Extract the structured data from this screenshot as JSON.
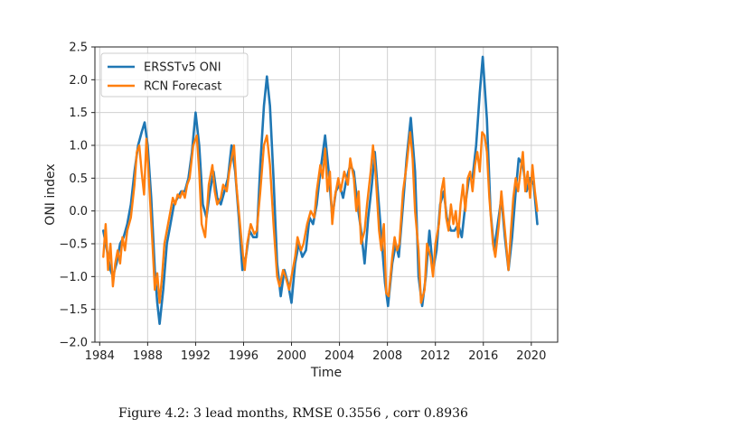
{
  "caption": "Figure 4.2: 3 lead months, RMSE 0.3556 , corr 0.8936",
  "chart_data": {
    "type": "line",
    "title": "",
    "xlabel": "Time",
    "ylabel": "ONI index",
    "xlim": [
      1983.6,
      2022.2
    ],
    "ylim": [
      -2.0,
      2.5
    ],
    "xticks": [
      1984,
      1988,
      1992,
      1996,
      2000,
      2004,
      2008,
      2012,
      2016,
      2020
    ],
    "yticks": [
      -2.0,
      -1.5,
      -1.0,
      -0.5,
      0.0,
      0.5,
      1.0,
      1.5,
      2.0,
      2.5
    ],
    "ytick_labels": [
      "−2.0",
      "−1.5",
      "−1.0",
      "−0.5",
      "0.0",
      "0.5",
      "1.0",
      "1.5",
      "2.0",
      "2.5"
    ],
    "grid": true,
    "legend_position": "top-left",
    "series": [
      {
        "name": "ERSSTv5 ONI",
        "color": "#1f77b4",
        "points": [
          [
            1984.3,
            -0.3
          ],
          [
            1984.6,
            -0.6
          ],
          [
            1984.9,
            -0.9
          ],
          [
            1985.1,
            -1.0
          ],
          [
            1985.4,
            -0.8
          ],
          [
            1985.7,
            -0.5
          ],
          [
            1986.0,
            -0.4
          ],
          [
            1986.3,
            -0.2
          ],
          [
            1986.6,
            0.1
          ],
          [
            1986.9,
            0.6
          ],
          [
            1987.2,
            1.0
          ],
          [
            1987.5,
            1.2
          ],
          [
            1987.75,
            1.35
          ],
          [
            1988.0,
            1.0
          ],
          [
            1988.3,
            0.2
          ],
          [
            1988.6,
            -0.9
          ],
          [
            1988.8,
            -1.4
          ],
          [
            1989.0,
            -1.72
          ],
          [
            1989.3,
            -1.2
          ],
          [
            1989.6,
            -0.5
          ],
          [
            1989.9,
            -0.2
          ],
          [
            1990.2,
            0.1
          ],
          [
            1990.5,
            0.2
          ],
          [
            1990.8,
            0.3
          ],
          [
            1991.1,
            0.3
          ],
          [
            1991.4,
            0.5
          ],
          [
            1991.7,
            0.9
          ],
          [
            1992.0,
            1.5
          ],
          [
            1992.3,
            1.0
          ],
          [
            1992.6,
            0.1
          ],
          [
            1992.9,
            -0.1
          ],
          [
            1993.2,
            0.3
          ],
          [
            1993.5,
            0.6
          ],
          [
            1993.8,
            0.2
          ],
          [
            1994.1,
            0.1
          ],
          [
            1994.4,
            0.3
          ],
          [
            1994.7,
            0.5
          ],
          [
            1995.0,
            1.0
          ],
          [
            1995.3,
            0.6
          ],
          [
            1995.6,
            -0.1
          ],
          [
            1995.9,
            -0.9
          ],
          [
            1996.2,
            -0.7
          ],
          [
            1996.5,
            -0.3
          ],
          [
            1996.8,
            -0.4
          ],
          [
            1997.1,
            -0.4
          ],
          [
            1997.4,
            0.7
          ],
          [
            1997.7,
            1.6
          ],
          [
            1997.95,
            2.05
          ],
          [
            1998.2,
            1.6
          ],
          [
            1998.5,
            0.5
          ],
          [
            1998.8,
            -0.8
          ],
          [
            1999.1,
            -1.3
          ],
          [
            1999.4,
            -0.9
          ],
          [
            1999.7,
            -1.1
          ],
          [
            2000.0,
            -1.4
          ],
          [
            2000.3,
            -0.8
          ],
          [
            2000.6,
            -0.5
          ],
          [
            2000.9,
            -0.7
          ],
          [
            2001.2,
            -0.6
          ],
          [
            2001.5,
            -0.1
          ],
          [
            2001.8,
            -0.2
          ],
          [
            2002.1,
            0.1
          ],
          [
            2002.4,
            0.6
          ],
          [
            2002.8,
            1.15
          ],
          [
            2003.1,
            0.6
          ],
          [
            2003.4,
            -0.1
          ],
          [
            2003.7,
            0.3
          ],
          [
            2004.0,
            0.4
          ],
          [
            2004.3,
            0.2
          ],
          [
            2004.6,
            0.5
          ],
          [
            2004.9,
            0.7
          ],
          [
            2005.2,
            0.6
          ],
          [
            2005.5,
            0.1
          ],
          [
            2005.8,
            -0.3
          ],
          [
            2006.1,
            -0.8
          ],
          [
            2006.4,
            -0.1
          ],
          [
            2006.7,
            0.4
          ],
          [
            2006.95,
            0.9
          ],
          [
            2007.2,
            0.3
          ],
          [
            2007.5,
            -0.4
          ],
          [
            2007.8,
            -1.1
          ],
          [
            2008.05,
            -1.45
          ],
          [
            2008.4,
            -0.8
          ],
          [
            2008.7,
            -0.5
          ],
          [
            2008.95,
            -0.7
          ],
          [
            2009.3,
            0.1
          ],
          [
            2009.6,
            0.8
          ],
          [
            2009.95,
            1.42
          ],
          [
            2010.3,
            0.6
          ],
          [
            2010.6,
            -1.0
          ],
          [
            2010.9,
            -1.45
          ],
          [
            2011.2,
            -1.0
          ],
          [
            2011.5,
            -0.3
          ],
          [
            2011.8,
            -0.9
          ],
          [
            2012.1,
            -0.6
          ],
          [
            2012.4,
            0.1
          ],
          [
            2012.7,
            0.3
          ],
          [
            2012.95,
            -0.1
          ],
          [
            2013.3,
            -0.3
          ],
          [
            2013.6,
            -0.3
          ],
          [
            2013.9,
            -0.2
          ],
          [
            2014.2,
            -0.4
          ],
          [
            2014.5,
            0.1
          ],
          [
            2014.8,
            0.5
          ],
          [
            2015.1,
            0.5
          ],
          [
            2015.4,
            1.0
          ],
          [
            2015.7,
            1.8
          ],
          [
            2015.95,
            2.35
          ],
          [
            2016.3,
            1.4
          ],
          [
            2016.6,
            0.0
          ],
          [
            2016.9,
            -0.6
          ],
          [
            2017.2,
            -0.2
          ],
          [
            2017.5,
            0.2
          ],
          [
            2017.8,
            -0.4
          ],
          [
            2018.1,
            -0.9
          ],
          [
            2018.4,
            -0.4
          ],
          [
            2018.7,
            0.3
          ],
          [
            2018.95,
            0.8
          ],
          [
            2019.3,
            0.7
          ],
          [
            2019.6,
            0.3
          ],
          [
            2019.9,
            0.5
          ],
          [
            2020.2,
            0.4
          ],
          [
            2020.5,
            -0.2
          ]
        ]
      },
      {
        "name": "RCN Forecast",
        "color": "#ff7f0e",
        "points": [
          [
            1984.3,
            -0.7
          ],
          [
            1984.5,
            -0.2
          ],
          [
            1984.7,
            -0.9
          ],
          [
            1984.9,
            -0.5
          ],
          [
            1985.1,
            -1.15
          ],
          [
            1985.3,
            -0.8
          ],
          [
            1985.5,
            -0.6
          ],
          [
            1985.7,
            -0.8
          ],
          [
            1985.9,
            -0.4
          ],
          [
            1986.1,
            -0.6
          ],
          [
            1986.3,
            -0.3
          ],
          [
            1986.6,
            -0.1
          ],
          [
            1986.9,
            0.4
          ],
          [
            1987.1,
            0.9
          ],
          [
            1987.3,
            1.0
          ],
          [
            1987.5,
            0.6
          ],
          [
            1987.7,
            0.25
          ],
          [
            1987.9,
            1.1
          ],
          [
            1988.1,
            0.5
          ],
          [
            1988.4,
            -0.5
          ],
          [
            1988.6,
            -1.2
          ],
          [
            1988.8,
            -0.95
          ],
          [
            1989.0,
            -1.4
          ],
          [
            1989.2,
            -1.0
          ],
          [
            1989.4,
            -0.5
          ],
          [
            1989.6,
            -0.3
          ],
          [
            1989.9,
            0.0
          ],
          [
            1990.1,
            0.2
          ],
          [
            1990.3,
            0.1
          ],
          [
            1990.5,
            0.25
          ],
          [
            1990.7,
            0.2
          ],
          [
            1990.9,
            0.3
          ],
          [
            1991.1,
            0.2
          ],
          [
            1991.3,
            0.4
          ],
          [
            1991.5,
            0.5
          ],
          [
            1991.8,
            1.0
          ],
          [
            1992.1,
            1.15
          ],
          [
            1992.3,
            0.6
          ],
          [
            1992.5,
            -0.2
          ],
          [
            1992.8,
            -0.4
          ],
          [
            1993.1,
            0.4
          ],
          [
            1993.4,
            0.7
          ],
          [
            1993.6,
            0.3
          ],
          [
            1993.8,
            0.1
          ],
          [
            1994.1,
            0.2
          ],
          [
            1994.3,
            0.4
          ],
          [
            1994.6,
            0.3
          ],
          [
            1994.8,
            0.6
          ],
          [
            1995.0,
            0.8
          ],
          [
            1995.2,
            1.0
          ],
          [
            1995.4,
            0.4
          ],
          [
            1995.6,
            0.0
          ],
          [
            1995.9,
            -0.6
          ],
          [
            1996.1,
            -0.9
          ],
          [
            1996.3,
            -0.5
          ],
          [
            1996.6,
            -0.2
          ],
          [
            1996.9,
            -0.35
          ],
          [
            1997.1,
            -0.3
          ],
          [
            1997.4,
            0.3
          ],
          [
            1997.7,
            1.0
          ],
          [
            1997.95,
            1.15
          ],
          [
            1998.2,
            0.7
          ],
          [
            1998.5,
            -0.2
          ],
          [
            1998.8,
            -1.0
          ],
          [
            1999.0,
            -1.15
          ],
          [
            1999.3,
            -0.9
          ],
          [
            1999.5,
            -1.0
          ],
          [
            1999.8,
            -1.2
          ],
          [
            2000.0,
            -1.0
          ],
          [
            2000.3,
            -0.7
          ],
          [
            2000.5,
            -0.4
          ],
          [
            2000.8,
            -0.6
          ],
          [
            2001.0,
            -0.5
          ],
          [
            2001.3,
            -0.2
          ],
          [
            2001.6,
            0.0
          ],
          [
            2001.9,
            -0.1
          ],
          [
            2002.1,
            0.3
          ],
          [
            2002.4,
            0.7
          ],
          [
            2002.6,
            0.5
          ],
          [
            2002.8,
            0.95
          ],
          [
            2003.0,
            0.3
          ],
          [
            2003.2,
            0.6
          ],
          [
            2003.4,
            -0.2
          ],
          [
            2003.6,
            0.2
          ],
          [
            2003.9,
            0.5
          ],
          [
            2004.1,
            0.3
          ],
          [
            2004.4,
            0.6
          ],
          [
            2004.7,
            0.4
          ],
          [
            2004.9,
            0.8
          ],
          [
            2005.2,
            0.5
          ],
          [
            2005.4,
            0.0
          ],
          [
            2005.6,
            0.3
          ],
          [
            2005.8,
            -0.5
          ],
          [
            2006.1,
            -0.3
          ],
          [
            2006.3,
            0.1
          ],
          [
            2006.6,
            0.6
          ],
          [
            2006.8,
            1.0
          ],
          [
            2007.0,
            0.6
          ],
          [
            2007.3,
            -0.3
          ],
          [
            2007.5,
            -0.6
          ],
          [
            2007.7,
            -0.2
          ],
          [
            2007.9,
            -1.25
          ],
          [
            2008.1,
            -1.3
          ],
          [
            2008.4,
            -0.7
          ],
          [
            2008.6,
            -0.4
          ],
          [
            2008.8,
            -0.6
          ],
          [
            2009.0,
            -0.5
          ],
          [
            2009.3,
            0.3
          ],
          [
            2009.6,
            0.7
          ],
          [
            2009.9,
            1.2
          ],
          [
            2010.1,
            0.8
          ],
          [
            2010.3,
            0.0
          ],
          [
            2010.6,
            -0.6
          ],
          [
            2010.8,
            -1.4
          ],
          [
            2011.1,
            -1.2
          ],
          [
            2011.3,
            -0.5
          ],
          [
            2011.6,
            -0.7
          ],
          [
            2011.8,
            -1.0
          ],
          [
            2012.0,
            -0.5
          ],
          [
            2012.3,
            -0.2
          ],
          [
            2012.5,
            0.3
          ],
          [
            2012.7,
            0.5
          ],
          [
            2012.9,
            -0.1
          ],
          [
            2013.1,
            -0.3
          ],
          [
            2013.3,
            0.1
          ],
          [
            2013.5,
            -0.2
          ],
          [
            2013.7,
            0.0
          ],
          [
            2013.9,
            -0.4
          ],
          [
            2014.1,
            0.1
          ],
          [
            2014.3,
            0.4
          ],
          [
            2014.5,
            0.0
          ],
          [
            2014.7,
            0.5
          ],
          [
            2014.9,
            0.6
          ],
          [
            2015.1,
            0.3
          ],
          [
            2015.3,
            0.7
          ],
          [
            2015.5,
            0.9
          ],
          [
            2015.7,
            0.6
          ],
          [
            2015.9,
            1.2
          ],
          [
            2016.1,
            1.15
          ],
          [
            2016.3,
            0.9
          ],
          [
            2016.5,
            0.2
          ],
          [
            2016.8,
            -0.5
          ],
          [
            2017.0,
            -0.7
          ],
          [
            2017.3,
            -0.2
          ],
          [
            2017.5,
            0.3
          ],
          [
            2017.7,
            -0.1
          ],
          [
            2017.9,
            -0.5
          ],
          [
            2018.1,
            -0.9
          ],
          [
            2018.3,
            -0.3
          ],
          [
            2018.5,
            0.2
          ],
          [
            2018.7,
            0.5
          ],
          [
            2018.9,
            0.3
          ],
          [
            2019.1,
            0.6
          ],
          [
            2019.3,
            0.9
          ],
          [
            2019.5,
            0.3
          ],
          [
            2019.7,
            0.6
          ],
          [
            2019.9,
            0.2
          ],
          [
            2020.1,
            0.7
          ],
          [
            2020.3,
            0.3
          ],
          [
            2020.5,
            0.0
          ]
        ]
      }
    ]
  }
}
